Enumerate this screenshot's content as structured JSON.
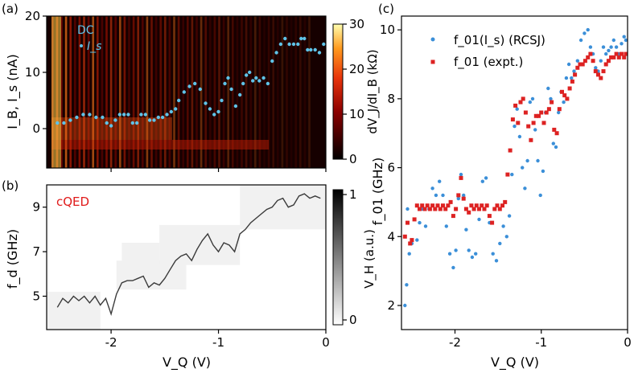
{
  "chart_data": [
    {
      "panel_label": "(a)",
      "type": "heatmap",
      "xlim": [
        -2.6,
        0
      ],
      "ylim": [
        -7,
        20
      ],
      "xticks": [
        -2,
        -1,
        0
      ],
      "yticks": [
        0,
        10,
        20
      ],
      "ytick_labels": [
        "0",
        "10",
        "20"
      ],
      "ylabel": "I_B, I_s (nA)",
      "colorbar": {
        "label": "dV_J/dI_B (kΩ)",
        "range": [
          0,
          30
        ],
        "ticks": [
          0,
          10,
          20,
          30
        ],
        "colors": [
          "#000000",
          "#8b0000",
          "#e8340b",
          "#ff9a1f",
          "#ffffb0"
        ]
      },
      "legend": {
        "title": "DC",
        "entry": "I_s",
        "position": "top-left"
      },
      "series": [
        {
          "name": "I_s",
          "color": "#5fc3e8",
          "x": [
            -2.5,
            -2.44,
            -2.38,
            -2.32,
            -2.26,
            -2.2,
            -2.14,
            -2.08,
            -2.04,
            -2.0,
            -1.96,
            -1.92,
            -1.88,
            -1.84,
            -1.8,
            -1.76,
            -1.72,
            -1.68,
            -1.64,
            -1.6,
            -1.56,
            -1.52,
            -1.48,
            -1.44,
            -1.4,
            -1.37,
            -1.32,
            -1.27,
            -1.22,
            -1.17,
            -1.12,
            -1.08,
            -1.04,
            -1.0,
            -0.97,
            -0.94,
            -0.91,
            -0.88,
            -0.84,
            -0.8,
            -0.77,
            -0.74,
            -0.71,
            -0.68,
            -0.65,
            -0.62,
            -0.58,
            -0.54,
            -0.5,
            -0.46,
            -0.42,
            -0.38,
            -0.34,
            -0.3,
            -0.26,
            -0.23,
            -0.2,
            -0.17,
            -0.14,
            -0.1,
            -0.06,
            -0.02
          ],
          "values": [
            1,
            1,
            1.5,
            2,
            2.5,
            2.5,
            2,
            2,
            1,
            0.5,
            1.5,
            2.5,
            2.5,
            2.5,
            1,
            1,
            2.5,
            2.5,
            1.5,
            1.5,
            2,
            2,
            2.5,
            3,
            3.5,
            5,
            6.5,
            7.5,
            8,
            7,
            4.5,
            3.5,
            2.5,
            3,
            5,
            8,
            9,
            7,
            4,
            6,
            8,
            9.5,
            10,
            8.5,
            9,
            8.5,
            9,
            8,
            12,
            13.5,
            15,
            16,
            15,
            15,
            15,
            16,
            16,
            14,
            14,
            14,
            13.5,
            15
          ]
        }
      ]
    },
    {
      "panel_label": "(b)",
      "type": "heatmap",
      "annotation": "cQED",
      "xlim": [
        -2.6,
        0
      ],
      "ylim": [
        3.5,
        10
      ],
      "xticks": [
        -2,
        -1,
        0
      ],
      "xtick_labels": [
        "-2",
        "-1",
        "0"
      ],
      "yticks": [
        5,
        7,
        9
      ],
      "ytick_labels": [
        "5",
        "7",
        "9"
      ],
      "xlabel": "V_Q (V)",
      "ylabel": "f_d (GHz)",
      "colorbar": {
        "label": "V_H (a.u.)",
        "range": [
          0,
          1
        ],
        "ticks": [
          0,
          1
        ],
        "colors": [
          "#ffffff",
          "#000000"
        ]
      },
      "series": [
        {
          "name": "resonance",
          "color": "#1a1a1a",
          "x": [
            -2.5,
            -2.45,
            -2.4,
            -2.35,
            -2.3,
            -2.25,
            -2.2,
            -2.15,
            -2.1,
            -2.05,
            -2.0,
            -1.95,
            -1.9,
            -1.85,
            -1.8,
            -1.75,
            -1.7,
            -1.65,
            -1.6,
            -1.55,
            -1.5,
            -1.45,
            -1.4,
            -1.35,
            -1.3,
            -1.25,
            -1.2,
            -1.15,
            -1.1,
            -1.05,
            -1.0,
            -0.95,
            -0.9,
            -0.85,
            -0.8,
            -0.75,
            -0.7,
            -0.65,
            -0.6,
            -0.55,
            -0.5,
            -0.45,
            -0.4,
            -0.35,
            -0.3,
            -0.25,
            -0.2,
            -0.15,
            -0.1,
            -0.05
          ],
          "values": [
            4.5,
            4.9,
            4.7,
            5.0,
            4.8,
            5.0,
            4.7,
            5.0,
            4.6,
            4.9,
            4.2,
            5.1,
            5.6,
            5.7,
            5.7,
            5.8,
            5.9,
            5.4,
            5.6,
            5.5,
            5.8,
            6.2,
            6.6,
            6.8,
            6.9,
            6.6,
            7.1,
            7.5,
            7.8,
            7.3,
            7.0,
            7.4,
            7.3,
            7.0,
            7.8,
            8.0,
            8.3,
            8.5,
            8.7,
            8.9,
            9.0,
            9.3,
            9.4,
            9.0,
            9.1,
            9.5,
            9.6,
            9.4,
            9.5,
            9.4
          ]
        }
      ]
    },
    {
      "panel_label": "(c)",
      "type": "scatter",
      "xlim": [
        -2.62,
        0
      ],
      "ylim": [
        1.3,
        10.4
      ],
      "xticks": [
        -2,
        -1,
        0
      ],
      "xtick_labels": [
        "-2",
        "-1",
        "0"
      ],
      "yticks": [
        2,
        4,
        6,
        8,
        10
      ],
      "ytick_labels": [
        "2",
        "4",
        "6",
        "8",
        "10"
      ],
      "xlabel": "V_Q (V)",
      "ylabel": "f_01 (GHz)",
      "legend_position": "top-left",
      "series": [
        {
          "name": "f_01(I_s) (RCSJ)",
          "color": "#3b8fd8",
          "x": [
            -2.58,
            -2.56,
            -2.55,
            -2.53,
            -2.5,
            -2.47,
            -2.44,
            -2.41,
            -2.38,
            -2.34,
            -2.3,
            -2.26,
            -2.22,
            -2.18,
            -2.14,
            -2.1,
            -2.06,
            -2.02,
            -1.99,
            -1.96,
            -1.93,
            -1.9,
            -1.87,
            -1.84,
            -1.8,
            -1.76,
            -1.72,
            -1.68,
            -1.64,
            -1.6,
            -1.56,
            -1.52,
            -1.48,
            -1.44,
            -1.4,
            -1.37,
            -1.34,
            -1.31,
            -1.28,
            -1.25,
            -1.22,
            -1.19,
            -1.16,
            -1.13,
            -1.1,
            -1.07,
            -1.04,
            -1.01,
            -0.98,
            -0.95,
            -0.92,
            -0.89,
            -0.86,
            -0.83,
            -0.8,
            -0.77,
            -0.74,
            -0.71,
            -0.68,
            -0.65,
            -0.62,
            -0.58,
            -0.54,
            -0.5,
            -0.46,
            -0.43,
            -0.4,
            -0.37,
            -0.34,
            -0.31,
            -0.28,
            -0.25,
            -0.22,
            -0.19,
            -0.16,
            -0.13,
            -0.1,
            -0.07,
            -0.04,
            -0.02
          ],
          "values": [
            2.0,
            2.6,
            4.8,
            3.5,
            3.8,
            4.5,
            3.9,
            4.4,
            4.8,
            4.3,
            4.8,
            5.4,
            5.2,
            5.6,
            5.2,
            4.3,
            3.5,
            3.1,
            3.6,
            5.1,
            5.8,
            5.2,
            4.2,
            3.6,
            3.4,
            3.5,
            4.5,
            5.6,
            5.7,
            4.4,
            3.5,
            3.3,
            3.8,
            4.3,
            4.0,
            4.6,
            5.8,
            7.2,
            7.7,
            6.9,
            6.0,
            5.4,
            6.2,
            7.9,
            8.0,
            7.1,
            6.2,
            5.2,
            5.9,
            7.6,
            8.3,
            8.0,
            6.7,
            6.6,
            7.6,
            8.2,
            7.9,
            8.6,
            9.0,
            8.6,
            8.8,
            9.1,
            9.7,
            9.9,
            10.0,
            9.5,
            9.3,
            8.9,
            8.8,
            9.1,
            9.5,
            9.3,
            9.4,
            9.5,
            9.7,
            9.5,
            9.3,
            9.6,
            9.8,
            9.7
          ]
        },
        {
          "name": "f_01 (expt.)",
          "color": "#dd2222",
          "x": [
            -2.58,
            -2.55,
            -2.52,
            -2.5,
            -2.47,
            -2.44,
            -2.41,
            -2.38,
            -2.35,
            -2.32,
            -2.29,
            -2.26,
            -2.23,
            -2.2,
            -2.17,
            -2.14,
            -2.11,
            -2.08,
            -2.05,
            -2.02,
            -1.99,
            -1.96,
            -1.93,
            -1.9,
            -1.87,
            -1.84,
            -1.81,
            -1.78,
            -1.75,
            -1.72,
            -1.69,
            -1.66,
            -1.63,
            -1.6,
            -1.57,
            -1.54,
            -1.51,
            -1.48,
            -1.45,
            -1.42,
            -1.39,
            -1.36,
            -1.33,
            -1.3,
            -1.27,
            -1.24,
            -1.21,
            -1.18,
            -1.15,
            -1.12,
            -1.09,
            -1.06,
            -1.03,
            -1.0,
            -0.97,
            -0.94,
            -0.91,
            -0.88,
            -0.85,
            -0.82,
            -0.79,
            -0.76,
            -0.73,
            -0.7,
            -0.67,
            -0.64,
            -0.61,
            -0.58,
            -0.55,
            -0.52,
            -0.49,
            -0.46,
            -0.43,
            -0.4,
            -0.37,
            -0.34,
            -0.31,
            -0.28,
            -0.25,
            -0.22,
            -0.19,
            -0.16,
            -0.13,
            -0.1,
            -0.07,
            -0.04,
            -0.02
          ],
          "values": [
            4.0,
            4.4,
            3.8,
            3.9,
            4.5,
            4.9,
            4.8,
            4.9,
            4.8,
            4.9,
            4.8,
            4.9,
            4.8,
            4.9,
            4.8,
            4.9,
            4.8,
            4.9,
            5.0,
            4.6,
            4.8,
            5.2,
            5.7,
            5.1,
            4.8,
            4.7,
            4.9,
            4.8,
            4.9,
            4.8,
            4.9,
            4.8,
            4.9,
            4.6,
            4.4,
            4.8,
            4.9,
            4.8,
            4.9,
            5.0,
            5.8,
            6.5,
            7.4,
            7.8,
            7.3,
            7.9,
            8.0,
            7.6,
            7.2,
            6.8,
            7.3,
            7.5,
            7.5,
            7.6,
            7.3,
            7.6,
            7.7,
            7.9,
            7.1,
            7.0,
            7.7,
            8.2,
            8.1,
            8.0,
            8.3,
            8.5,
            8.7,
            8.9,
            9.0,
            9.0,
            9.1,
            9.2,
            9.3,
            9.1,
            8.8,
            8.7,
            8.6,
            8.8,
            9.0,
            9.1,
            9.2,
            9.2,
            9.3,
            9.2,
            9.3,
            9.2,
            9.3
          ]
        }
      ]
    }
  ]
}
